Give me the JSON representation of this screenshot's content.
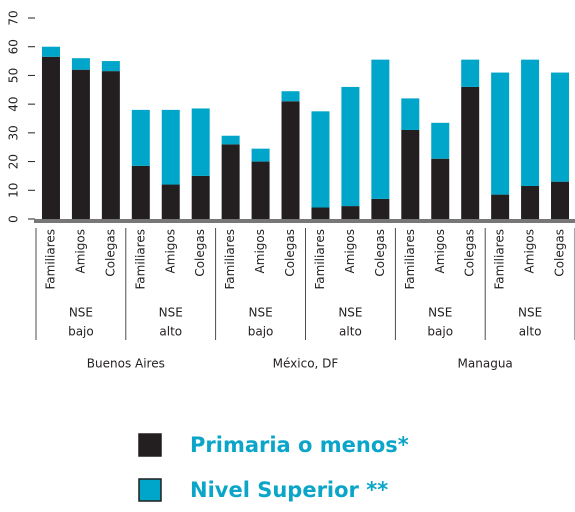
{
  "chart_data": {
    "type": "stacked_bar",
    "categories": [
      "Familiares",
      "Amigos",
      "Colegas",
      "Familiares",
      "Amigos",
      "Colegas",
      "Familiares",
      "Amigos",
      "Colegas",
      "Familiares",
      "Amigos",
      "Colegas",
      "Familiares",
      "Amigos",
      "Colegas",
      "Familiares",
      "Amigos",
      "Colegas"
    ],
    "subgroups": [
      [
        "NSE",
        "bajo"
      ],
      [
        "NSE",
        "alto"
      ],
      [
        "NSE",
        "bajo"
      ],
      [
        "NSE",
        "alto"
      ],
      [
        "NSE",
        "bajo"
      ],
      [
        "NSE",
        "alto"
      ]
    ],
    "groups": [
      "Buenos Aires",
      "México, DF",
      "Managua"
    ],
    "series": [
      {
        "name": "Primaria o menos*",
        "color": "#231f20",
        "values": [
          56.5,
          52,
          51.5,
          18.5,
          12,
          15,
          26,
          20,
          41,
          4,
          4.5,
          7,
          31,
          21,
          46,
          8.5,
          11.5,
          13
        ]
      },
      {
        "name": "Nivel Superior **",
        "color": "#00a6c9",
        "values": [
          3.5,
          4,
          3.5,
          19.5,
          26,
          23.5,
          3,
          4.5,
          3.5,
          33.5,
          41.5,
          48.5,
          11,
          12.5,
          9.5,
          42.5,
          44,
          38
        ]
      }
    ],
    "ylim": [
      0,
      70
    ],
    "yticks": [
      0,
      10,
      20,
      30,
      40,
      50,
      60,
      70
    ]
  }
}
